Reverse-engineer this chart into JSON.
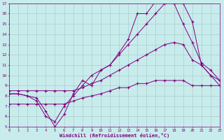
{
  "xlabel": "Windchill (Refroidissement éolien,°C)",
  "bg_color": "#c8ecec",
  "line_color": "#800080",
  "grid_color": "#aacccc",
  "xlim": [
    0,
    23
  ],
  "ylim": [
    5,
    17
  ],
  "xticks": [
    0,
    1,
    2,
    3,
    4,
    5,
    6,
    7,
    8,
    9,
    10,
    11,
    12,
    13,
    14,
    15,
    16,
    17,
    18,
    19,
    20,
    21,
    22,
    23
  ],
  "yticks": [
    5,
    6,
    7,
    8,
    9,
    10,
    11,
    12,
    13,
    14,
    15,
    16,
    17
  ],
  "lines": [
    {
      "x": [
        0,
        1,
        2,
        3,
        4,
        5,
        6,
        7,
        8,
        9,
        10,
        11,
        12,
        13,
        14,
        15,
        16,
        17,
        18,
        19,
        20,
        21,
        22,
        23
      ],
      "y": [
        8.2,
        8.2,
        8.0,
        7.8,
        6.5,
        5.0,
        6.2,
        8.2,
        9.5,
        9.0,
        10.5,
        11.0,
        12.2,
        13.5,
        16.0,
        16.0,
        17.2,
        17.2,
        17.0,
        15.0,
        13.2,
        11.2,
        10.5,
        9.5
      ]
    },
    {
      "x": [
        0,
        1,
        2,
        3,
        4,
        5,
        6,
        7,
        8,
        9,
        10,
        11,
        12,
        13,
        14,
        15,
        16,
        17,
        18,
        19,
        20,
        21,
        22,
        23
      ],
      "y": [
        8.2,
        8.2,
        8.0,
        7.5,
        6.0,
        5.5,
        7.0,
        8.0,
        9.0,
        10.0,
        10.5,
        11.0,
        12.0,
        13.0,
        14.0,
        15.0,
        16.0,
        17.0,
        17.0,
        17.0,
        15.2,
        11.0,
        10.0,
        9.0
      ]
    },
    {
      "x": [
        0,
        1,
        2,
        3,
        4,
        5,
        6,
        7,
        8,
        9,
        10,
        11,
        12,
        13,
        14,
        15,
        16,
        17,
        18,
        19,
        20,
        21,
        22,
        23
      ],
      "y": [
        8.5,
        8.5,
        8.5,
        8.5,
        8.5,
        8.5,
        8.5,
        8.5,
        8.8,
        9.2,
        9.5,
        10.0,
        10.5,
        11.0,
        11.5,
        12.0,
        12.5,
        13.0,
        13.2,
        13.0,
        11.5,
        11.0,
        10.0,
        9.5
      ]
    },
    {
      "x": [
        0,
        1,
        2,
        3,
        4,
        5,
        6,
        7,
        8,
        9,
        10,
        11,
        12,
        13,
        14,
        15,
        16,
        17,
        18,
        19,
        20,
        21,
        22,
        23
      ],
      "y": [
        7.2,
        7.2,
        7.2,
        7.2,
        7.2,
        7.2,
        7.2,
        7.5,
        7.8,
        8.0,
        8.2,
        8.5,
        8.8,
        8.8,
        9.2,
        9.2,
        9.5,
        9.5,
        9.5,
        9.5,
        9.0,
        9.0,
        9.0,
        9.0
      ]
    }
  ]
}
